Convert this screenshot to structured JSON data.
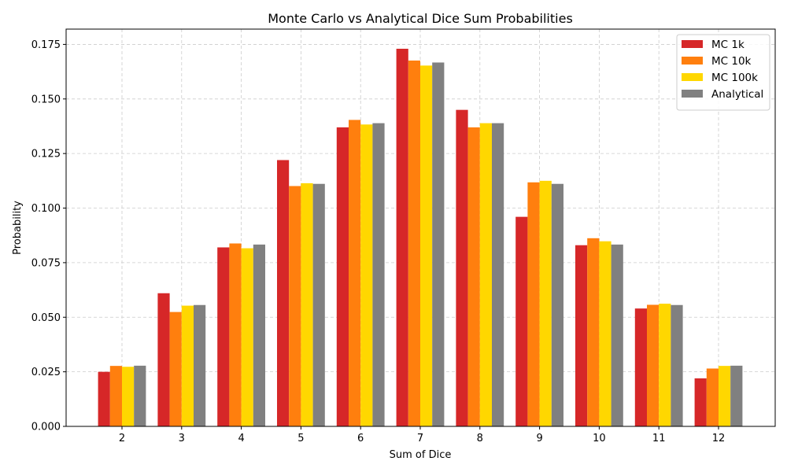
{
  "chart_data": {
    "type": "bar",
    "title": "Monte Carlo vs Analytical Dice Sum Probabilities",
    "xlabel": "Sum of Dice",
    "ylabel": "Probability",
    "categories": [
      "2",
      "3",
      "4",
      "5",
      "6",
      "7",
      "8",
      "9",
      "10",
      "11",
      "12"
    ],
    "ylim": [
      0,
      0.182
    ],
    "yticks": [
      0.0,
      0.025,
      0.05,
      0.075,
      0.1,
      0.125,
      0.15,
      0.175
    ],
    "ytick_labels": [
      "0.000",
      "0.025",
      "0.050",
      "0.075",
      "0.100",
      "0.125",
      "0.150",
      "0.175"
    ],
    "grid": true,
    "legend_position": "top-right",
    "series": [
      {
        "name": "MC 1k",
        "color": "#d62728",
        "values": [
          0.025,
          0.061,
          0.082,
          0.122,
          0.137,
          0.173,
          0.145,
          0.096,
          0.083,
          0.054,
          0.022
        ]
      },
      {
        "name": "MC 10k",
        "color": "#ff7f0e",
        "values": [
          0.0277,
          0.0524,
          0.0838,
          0.1101,
          0.1404,
          0.1676,
          0.137,
          0.1118,
          0.0862,
          0.0557,
          0.0265
        ]
      },
      {
        "name": "MC 100k",
        "color": "#ffd700",
        "values": [
          0.0273,
          0.0553,
          0.0816,
          0.1114,
          0.1383,
          0.1653,
          0.1389,
          0.1125,
          0.0848,
          0.0562,
          0.0277
        ]
      },
      {
        "name": "Analytical",
        "color": "#808080",
        "values": [
          0.0278,
          0.0556,
          0.0833,
          0.1111,
          0.1389,
          0.1667,
          0.1389,
          0.1111,
          0.0833,
          0.0556,
          0.0278
        ]
      }
    ]
  }
}
